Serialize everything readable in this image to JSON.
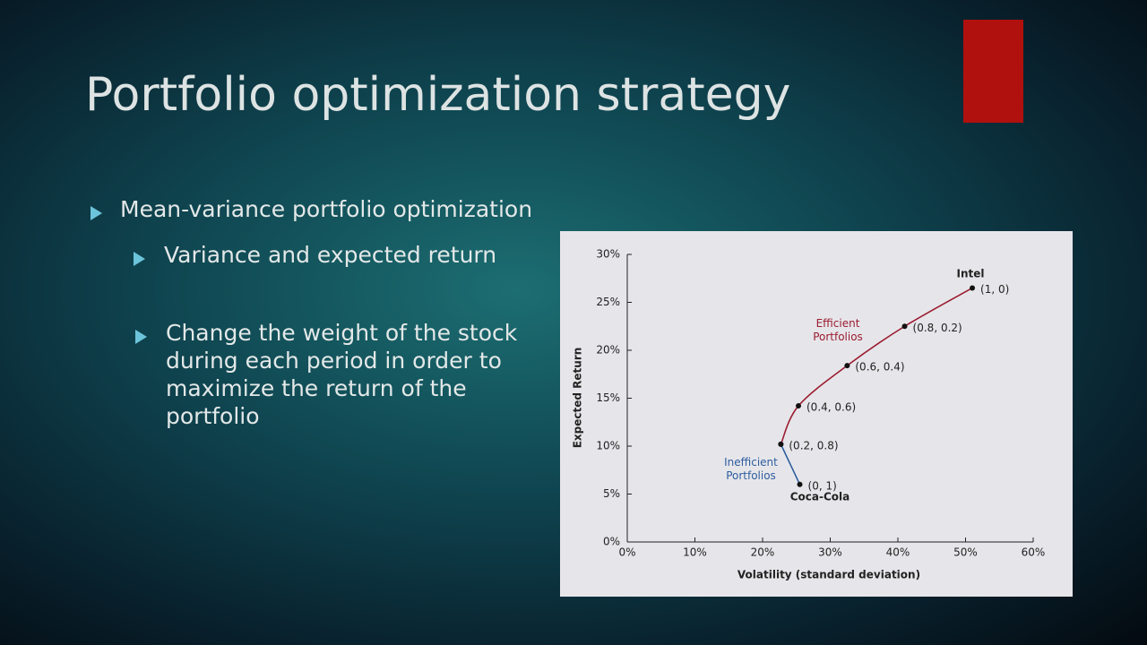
{
  "slide": {
    "title": "Portfolio optimization strategy",
    "bullets": [
      {
        "text": "Mean-variance portfolio optimization",
        "sub_bullets": [
          "Variance and expected return",
          "Change the weight of the stock during each period in order to maximize the return of the portfolio"
        ]
      }
    ]
  },
  "chart_data": {
    "type": "line",
    "x_label": "Volatility (standard deviation)",
    "y_label": "Expected Return",
    "xlim": [
      0,
      60
    ],
    "ylim": [
      0,
      30
    ],
    "xticks": [
      {
        "value": 0,
        "label": "0%"
      },
      {
        "value": 10,
        "label": "10%"
      },
      {
        "value": 20,
        "label": "20%"
      },
      {
        "value": 30,
        "label": "30%"
      },
      {
        "value": 40,
        "label": "40%"
      },
      {
        "value": 50,
        "label": "50%"
      },
      {
        "value": 60,
        "label": "60%"
      }
    ],
    "yticks": [
      {
        "value": 0,
        "label": "0%"
      },
      {
        "value": 5,
        "label": "5%"
      },
      {
        "value": 10,
        "label": "10%"
      },
      {
        "value": 15,
        "label": "15%"
      },
      {
        "value": 20,
        "label": "20%"
      },
      {
        "value": 25,
        "label": "25%"
      },
      {
        "value": 30,
        "label": "30%"
      }
    ],
    "series": [
      {
        "name": "Inefficient Portfolios",
        "color": "#2f5d9e",
        "x": [
          25.5,
          22.7
        ],
        "values": [
          6,
          10.2
        ],
        "point_labels": [
          "(0, 1)",
          "(0.2, 0.8)"
        ]
      },
      {
        "name": "Efficient Portfolios",
        "color": "#9b1b30",
        "x": [
          22.7,
          25.3,
          32.5,
          41,
          51
        ],
        "values": [
          10.2,
          14.2,
          18.4,
          22.5,
          26.5
        ],
        "point_labels": [
          null,
          "(0.4, 0.6)",
          "(0.6, 0.4)",
          "(0.8, 0.2)",
          "(1, 0)"
        ]
      }
    ],
    "annotations": [
      "Intel",
      "Coca-Cola"
    ]
  }
}
